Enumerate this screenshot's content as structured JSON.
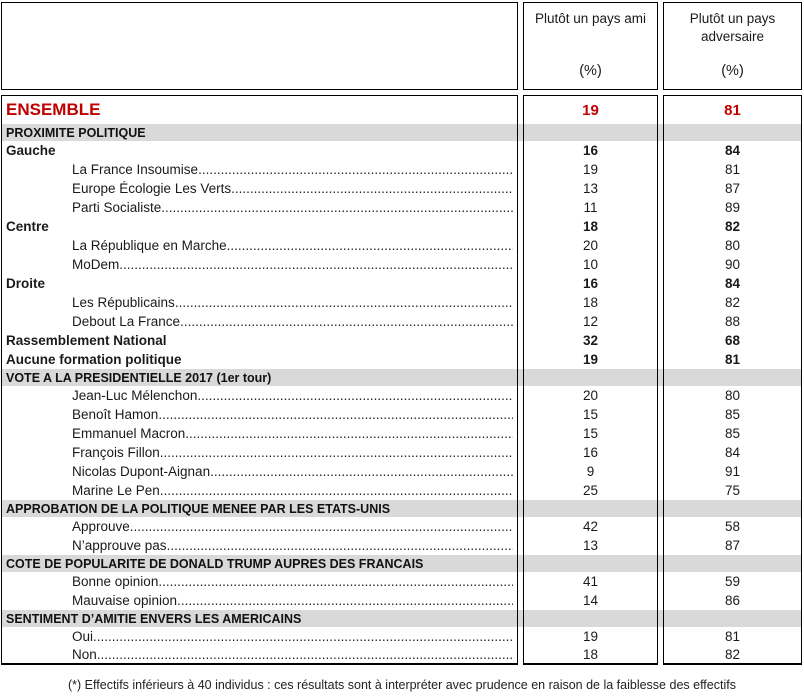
{
  "colors": {
    "accent_red": "#C00000",
    "band_gray": "#D9D9D9"
  },
  "table": {
    "columns": [
      {
        "label": "Plutôt un pays ami",
        "unit": "(%)"
      },
      {
        "label": "Plutôt un pays adversaire",
        "unit": "(%)"
      }
    ],
    "ensemble": {
      "label": "ENSEMBLE",
      "ami": "19",
      "adversaire": "81"
    },
    "rows": [
      {
        "type": "section",
        "label": "PROXIMITE POLITIQUE",
        "ami": "",
        "adversaire": ""
      },
      {
        "type": "group",
        "label": "Gauche",
        "ami": "16",
        "adversaire": "84"
      },
      {
        "type": "item",
        "label": "La France Insoumise",
        "ami": "19",
        "adversaire": "81"
      },
      {
        "type": "item",
        "label": "Europe Écologie Les Verts",
        "ami": "13",
        "adversaire": "87"
      },
      {
        "type": "item",
        "label": "Parti Socialiste",
        "ami": "11",
        "adversaire": "89"
      },
      {
        "type": "group",
        "label": "Centre",
        "ami": "18",
        "adversaire": "82"
      },
      {
        "type": "item",
        "label": "La République en Marche",
        "ami": "20",
        "adversaire": "80"
      },
      {
        "type": "item",
        "label": "MoDem",
        "ami": "10",
        "adversaire": "90"
      },
      {
        "type": "group",
        "label": "Droite",
        "ami": "16",
        "adversaire": "84"
      },
      {
        "type": "item",
        "label": "Les Républicains",
        "ami": "18",
        "adversaire": "82"
      },
      {
        "type": "item",
        "label": "Debout La France",
        "ami": "12",
        "adversaire": "88"
      },
      {
        "type": "group",
        "label": "Rassemblement National",
        "ami": "32",
        "adversaire": "68"
      },
      {
        "type": "group",
        "label": "Aucune formation politique",
        "ami": "19",
        "adversaire": "81"
      },
      {
        "type": "section",
        "label": "VOTE A LA PRESIDENTIELLE 2017 (1er tour)",
        "ami": "",
        "adversaire": ""
      },
      {
        "type": "item",
        "label": "Jean-Luc Mélenchon",
        "ami": "20",
        "adversaire": "80"
      },
      {
        "type": "item",
        "label": "Benoît Hamon",
        "ami": "15",
        "adversaire": "85"
      },
      {
        "type": "item",
        "label": "Emmanuel Macron",
        "ami": "15",
        "adversaire": "85"
      },
      {
        "type": "item",
        "label": "François Fillon",
        "ami": "16",
        "adversaire": "84"
      },
      {
        "type": "item",
        "label": "Nicolas Dupont-Aignan",
        "ami": "9",
        "adversaire": "91"
      },
      {
        "type": "item",
        "label": "Marine Le Pen",
        "ami": "25",
        "adversaire": "75"
      },
      {
        "type": "section",
        "label": "APPROBATION DE LA POLITIQUE MENEE PAR LES ETATS-UNIS",
        "ami": "",
        "adversaire": ""
      },
      {
        "type": "item",
        "label": "Approuve",
        "ami": "42",
        "adversaire": "58"
      },
      {
        "type": "item",
        "label": "N’approuve pas",
        "ami": "13",
        "adversaire": "87"
      },
      {
        "type": "section",
        "label": "COTE DE POPULARITE DE DONALD TRUMP AUPRES DES FRANCAIS",
        "ami": "",
        "adversaire": ""
      },
      {
        "type": "item",
        "label": "Bonne opinion",
        "ami": "41",
        "adversaire": "59"
      },
      {
        "type": "item",
        "label": "Mauvaise opinion",
        "ami": "14",
        "adversaire": "86"
      },
      {
        "type": "section",
        "label": "SENTIMENT D’AMITIE ENVERS LES AMERICAINS",
        "ami": "",
        "adversaire": ""
      },
      {
        "type": "item",
        "label": "Oui",
        "ami": "19",
        "adversaire": "81"
      },
      {
        "type": "item",
        "label": "Non",
        "ami": "18",
        "adversaire": "82"
      }
    ],
    "footnote": "(*) Effectifs inférieurs à 40 individus : ces résultats sont à interpréter avec prudence en raison de la faiblesse des effectifs"
  }
}
